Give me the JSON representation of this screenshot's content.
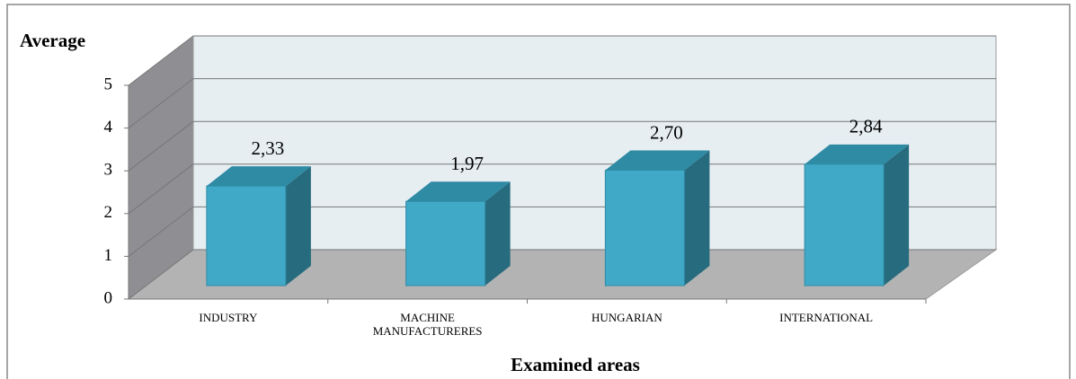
{
  "chart_data": {
    "type": "bar3d",
    "y_axis_label": "Average",
    "x_axis_label": "Examined areas",
    "categories": [
      "INDUSTRY",
      "MACHINE MANUFACTURERES",
      "HUNGARIAN",
      "INTERNATIONAL"
    ],
    "values": [
      2.33,
      1.97,
      2.7,
      2.84
    ],
    "value_labels": [
      "2,33",
      "1,97",
      "2,70",
      "2,84"
    ],
    "color": "#41a9c8",
    "ylim": [
      0,
      5
    ],
    "yticks": [
      0,
      1,
      2,
      3,
      4,
      5
    ],
    "grid": true
  }
}
